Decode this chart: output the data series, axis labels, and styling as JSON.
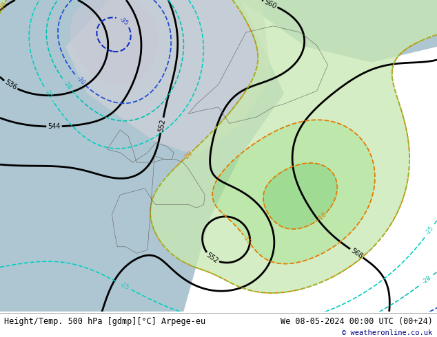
{
  "title_left": "Height/Temp. 500 hPa [gdmp][°C] Arpege-eu",
  "title_right": "We 08-05-2024 00:00 UTC (00+24)",
  "copyright": "© weatheronline.co.uk",
  "fig_width": 6.34,
  "fig_height": 4.9,
  "dpi": 100,
  "footer_fontsize": 8.5,
  "footer_color": "#000000",
  "copyright_color": "#000080",
  "land_color": "#c8c9a2",
  "sea_color": "#aec6d2",
  "cold_region_color": "#d0d0d8",
  "warm_region_color_1": "#c8e8b0",
  "warm_region_color_2": "#a8d890",
  "warm_region_color_3": "#88c870"
}
